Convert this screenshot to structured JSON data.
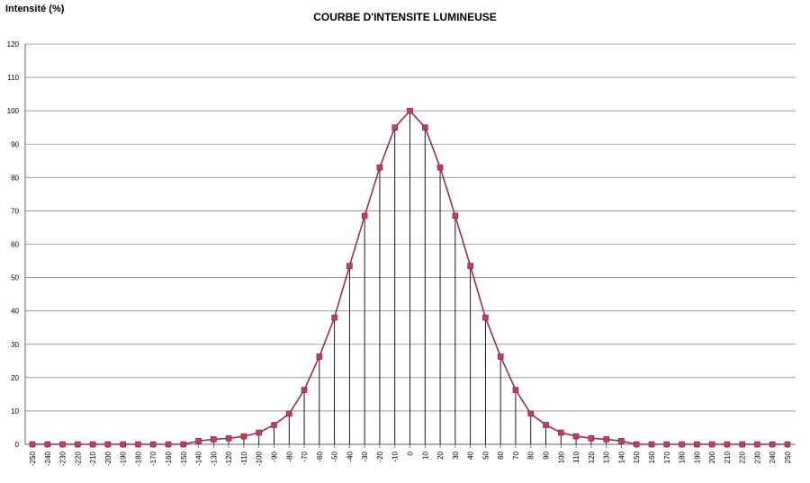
{
  "chart_data": {
    "type": "line",
    "title": "COURBE D'INTENSITE LUMINEUSE",
    "ylabel": "Intensité (%)",
    "xlabel": "",
    "ylim": [
      0,
      120
    ],
    "yticks": [
      0,
      10,
      20,
      30,
      40,
      50,
      60,
      70,
      80,
      90,
      100,
      110,
      120
    ],
    "grid": true,
    "legend": "none",
    "line_color": "#9b2c63",
    "marker_color": "#c0405a",
    "x": [
      -250,
      -240,
      -230,
      -220,
      -210,
      -200,
      -190,
      -180,
      -170,
      -160,
      -150,
      -140,
      -130,
      -120,
      -110,
      -100,
      -90,
      -80,
      -70,
      -60,
      -50,
      -40,
      -30,
      -20,
      -10,
      0,
      10,
      20,
      30,
      40,
      50,
      60,
      70,
      80,
      90,
      100,
      110,
      120,
      130,
      140,
      150,
      160,
      170,
      180,
      190,
      200,
      210,
      220,
      230,
      240,
      250
    ],
    "x_tick_labels": [
      "-250",
      "-240",
      "-230",
      "-220",
      "-210",
      "-200",
      "-190",
      "-180",
      "-170",
      "-160",
      "-150",
      "-140",
      "-130",
      "-120",
      "-110",
      "-100",
      "-90",
      "-80",
      "-70",
      "-60",
      "-50",
      "-40",
      "-30",
      "-20",
      "-10",
      "0",
      "10",
      "20",
      "30",
      "40",
      "50",
      "60",
      "70",
      "80",
      "90",
      "100",
      "110",
      "120",
      "130",
      "140",
      "150",
      "160",
      "170",
      "180",
      "190",
      "200",
      "210",
      "220",
      "230",
      "240",
      "250"
    ],
    "series": [
      {
        "values": [
          0,
          0,
          0,
          0,
          0,
          0,
          0,
          0,
          0,
          0,
          0,
          1,
          1.5,
          1.8,
          2.4,
          3.5,
          5.8,
          9.2,
          16.3,
          26.3,
          38,
          53.5,
          68.5,
          83,
          95,
          100,
          95,
          83,
          68.5,
          53.5,
          38,
          26.3,
          16.3,
          9.2,
          5.8,
          3.5,
          2.4,
          1.8,
          1.5,
          1,
          0,
          0,
          0,
          0,
          0,
          0,
          0,
          0,
          0,
          0,
          0
        ]
      }
    ]
  }
}
